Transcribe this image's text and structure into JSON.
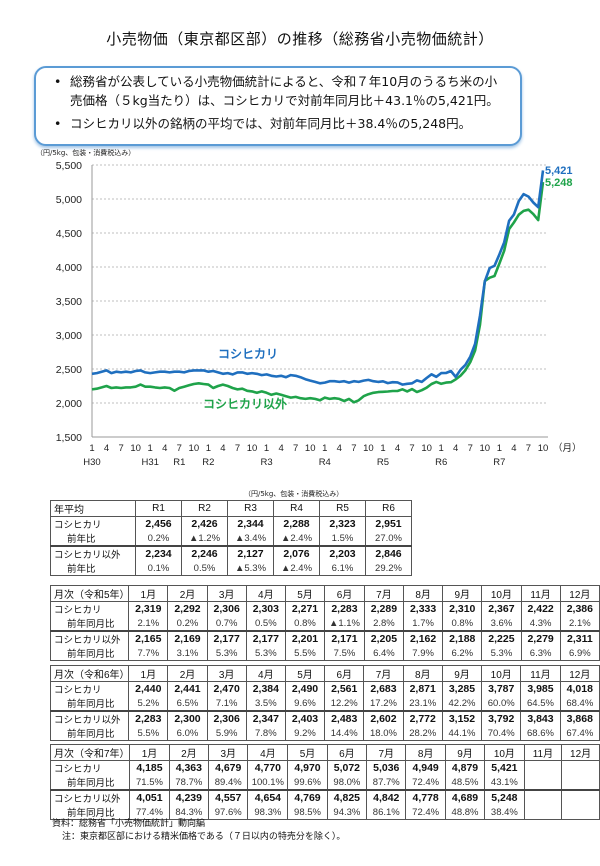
{
  "title": "小売物価（東京都区部）の推移（総務省小売物価統計）",
  "summary": {
    "items": [
      "総務省が公表している小売物価統計によると、令和７年10月のうるち米の小売価格（５kg当たり）は、コシヒカリで対前年同月比＋43.1％の5,421円。",
      "コシヒカリ以外の銘柄の平均では、対前年同月比＋38.4％の5,248円。"
    ]
  },
  "chart_data": {
    "type": "line",
    "title": "",
    "ylabel": "（円/5kg、包装・消費税込み）",
    "xlabel": "（月）",
    "ylim": [
      1500,
      5500
    ],
    "yticks": [
      "5,500",
      "5,000",
      "4,500",
      "4,000",
      "3,500",
      "3,000",
      "2,500",
      "2,000",
      "1,500"
    ],
    "grid": true,
    "x_month_ticks": [
      "1",
      "4",
      "7",
      "10",
      "1",
      "4",
      "7",
      "10",
      "1",
      "4",
      "7",
      "10",
      "1",
      "4",
      "7",
      "10",
      "1",
      "4",
      "7",
      "10",
      "1",
      "4",
      "7",
      "10",
      "1",
      "4",
      "7",
      "10",
      "1",
      "4",
      "7",
      "10"
    ],
    "era_labels": [
      {
        "label": "H30",
        "month_index": 0
      },
      {
        "label": "H31",
        "month_index": 12
      },
      {
        "label": "R1",
        "month_index": 18
      },
      {
        "label": "R2",
        "month_index": 24
      },
      {
        "label": "R3",
        "month_index": 36
      },
      {
        "label": "R4",
        "month_index": 48
      },
      {
        "label": "R5",
        "month_index": 60
      },
      {
        "label": "R6",
        "month_index": 72
      },
      {
        "label": "R7",
        "month_index": 84
      }
    ],
    "x_range": "2018-01 (H30.1) to 2025-10 (R7.10), monthly",
    "series": [
      {
        "name": "コシヒカリ",
        "color": "#1f6fbf",
        "end_label": "5,421",
        "values": [
          2430,
          2440,
          2460,
          2480,
          2440,
          2460,
          2450,
          2460,
          2450,
          2470,
          2480,
          2450,
          2440,
          2450,
          2460,
          2460,
          2450,
          2460,
          2460,
          2450,
          2470,
          2480,
          2480,
          2480,
          2460,
          2470,
          2450,
          2430,
          2440,
          2420,
          2450,
          2450,
          2430,
          2440,
          2430,
          2410,
          2420,
          2400,
          2390,
          2400,
          2380,
          2410,
          2400,
          2380,
          2350,
          2330,
          2310,
          2290,
          2300,
          2320,
          2320,
          2310,
          2320,
          2300,
          2320,
          2310,
          2330,
          2340,
          2320,
          2310,
          2319,
          2292,
          2306,
          2303,
          2271,
          2283,
          2289,
          2333,
          2310,
          2367,
          2422,
          2386,
          2440,
          2441,
          2470,
          2384,
          2490,
          2561,
          2683,
          2871,
          3285,
          3787,
          3985,
          4018,
          4185,
          4363,
          4679,
          4770,
          4970,
          5072,
          5036,
          4949,
          4879,
          5421
        ]
      },
      {
        "name": "コシヒカリ以外",
        "color": "#1fa34a",
        "end_label": "5,248",
        "values": [
          2200,
          2210,
          2230,
          2250,
          2220,
          2230,
          2220,
          2230,
          2230,
          2240,
          2270,
          2240,
          2240,
          2230,
          2220,
          2230,
          2220,
          2180,
          2220,
          2240,
          2260,
          2280,
          2290,
          2280,
          2270,
          2220,
          2250,
          2270,
          2250,
          2220,
          2200,
          2210,
          2180,
          2170,
          2150,
          2170,
          2150,
          2120,
          2140,
          2120,
          2100,
          2080,
          2090,
          2070,
          2060,
          2070,
          2060,
          2040,
          2080,
          2060,
          2070,
          2060,
          2030,
          2060,
          2010,
          2040,
          2100,
          2130,
          2150,
          2160,
          2165,
          2169,
          2177,
          2177,
          2201,
          2171,
          2205,
          2162,
          2188,
          2225,
          2279,
          2311,
          2283,
          2300,
          2306,
          2347,
          2403,
          2483,
          2602,
          2772,
          3152,
          3792,
          3843,
          3868,
          4051,
          4239,
          4557,
          4654,
          4769,
          4825,
          4842,
          4778,
          4689,
          5248
        ]
      }
    ],
    "annotations": [
      {
        "text": "コシヒカリ",
        "color": "#1f6fbf"
      },
      {
        "text": "コシヒカリ以外",
        "color": "#1fa34a"
      }
    ]
  },
  "tables": {
    "unit_note": "（円/5kg、包装・消費税込み）",
    "annual": {
      "header": [
        "年平均",
        "R1",
        "R2",
        "R3",
        "R4",
        "R5",
        "R6"
      ],
      "rows": [
        {
          "label": "コシヒカリ",
          "values": [
            "2,456",
            "2,426",
            "2,344",
            "2,288",
            "2,323",
            "2,951"
          ],
          "sub_label": "前年比",
          "sub_values": [
            "0.2%",
            "▲1.2%",
            "▲3.4%",
            "▲2.4%",
            "1.5%",
            "27.0%"
          ]
        },
        {
          "label": "コシヒカリ以外",
          "values": [
            "2,234",
            "2,246",
            "2,127",
            "2,076",
            "2,203",
            "2,846"
          ],
          "sub_label": "前年比",
          "sub_values": [
            "0.1%",
            "0.5%",
            "▲5.3%",
            "▲2.4%",
            "6.1%",
            "29.2%"
          ]
        }
      ]
    },
    "monthly": [
      {
        "header": [
          "月次（令和5年）",
          "1月",
          "2月",
          "3月",
          "4月",
          "5月",
          "6月",
          "7月",
          "8月",
          "9月",
          "10月",
          "11月",
          "12月"
        ],
        "rows": [
          {
            "label": "コシヒカリ",
            "values": [
              "2,319",
              "2,292",
              "2,306",
              "2,303",
              "2,271",
              "2,283",
              "2,289",
              "2,333",
              "2,310",
              "2,367",
              "2,422",
              "2,386"
            ],
            "sub_label": "前年同月比",
            "sub_values": [
              "2.1%",
              "0.2%",
              "0.7%",
              "0.5%",
              "0.8%",
              "▲1.1%",
              "2.8%",
              "1.7%",
              "0.8%",
              "3.6%",
              "4.3%",
              "2.1%"
            ]
          },
          {
            "label": "コシヒカリ以外",
            "values": [
              "2,165",
              "2,169",
              "2,177",
              "2,177",
              "2,201",
              "2,171",
              "2,205",
              "2,162",
              "2,188",
              "2,225",
              "2,279",
              "2,311"
            ],
            "sub_label": "前年同月比",
            "sub_values": [
              "7.7%",
              "3.1%",
              "5.3%",
              "5.3%",
              "5.5%",
              "7.5%",
              "6.4%",
              "7.9%",
              "6.2%",
              "5.3%",
              "6.3%",
              "6.9%"
            ]
          }
        ]
      },
      {
        "header": [
          "月次（令和6年）",
          "1月",
          "2月",
          "3月",
          "4月",
          "5月",
          "6月",
          "7月",
          "8月",
          "9月",
          "10月",
          "11月",
          "12月"
        ],
        "rows": [
          {
            "label": "コシヒカリ",
            "values": [
              "2,440",
              "2,441",
              "2,470",
              "2,384",
              "2,490",
              "2,561",
              "2,683",
              "2,871",
              "3,285",
              "3,787",
              "3,985",
              "4,018"
            ],
            "sub_label": "前年同月比",
            "sub_values": [
              "5.2%",
              "6.5%",
              "7.1%",
              "3.5%",
              "9.6%",
              "12.2%",
              "17.2%",
              "23.1%",
              "42.2%",
              "60.0%",
              "64.5%",
              "68.4%"
            ]
          },
          {
            "label": "コシヒカリ以外",
            "values": [
              "2,283",
              "2,300",
              "2,306",
              "2,347",
              "2,403",
              "2,483",
              "2,602",
              "2,772",
              "3,152",
              "3,792",
              "3,843",
              "3,868"
            ],
            "sub_label": "前年同月比",
            "sub_values": [
              "5.5%",
              "6.0%",
              "5.9%",
              "7.8%",
              "9.2%",
              "14.4%",
              "18.0%",
              "28.2%",
              "44.1%",
              "70.4%",
              "68.6%",
              "67.4%"
            ]
          }
        ]
      },
      {
        "header": [
          "月次（令和7年）",
          "1月",
          "2月",
          "3月",
          "4月",
          "5月",
          "6月",
          "7月",
          "8月",
          "9月",
          "10月",
          "11月",
          "12月"
        ],
        "rows": [
          {
            "label": "コシヒカリ",
            "values": [
              "4,185",
              "4,363",
              "4,679",
              "4,770",
              "4,970",
              "5,072",
              "5,036",
              "4,949",
              "4,879",
              "5,421",
              "",
              ""
            ],
            "sub_label": "前年同月比",
            "sub_values": [
              "71.5%",
              "78.7%",
              "89.4%",
              "100.1%",
              "99.6%",
              "98.0%",
              "87.7%",
              "72.4%",
              "48.5%",
              "43.1%",
              "",
              ""
            ]
          },
          {
            "label": "コシヒカリ以外",
            "values": [
              "4,051",
              "4,239",
              "4,557",
              "4,654",
              "4,769",
              "4,825",
              "4,842",
              "4,778",
              "4,689",
              "5,248",
              "",
              ""
            ],
            "sub_label": "前年同月比",
            "sub_values": [
              "77.4%",
              "84.3%",
              "97.6%",
              "98.3%",
              "98.5%",
              "94.3%",
              "86.1%",
              "72.4%",
              "48.8%",
              "38.4%",
              "",
              ""
            ]
          }
        ]
      }
    ]
  },
  "notes": {
    "source": "資料：総務省「小売物価統計」動向編",
    "note": "注：東京都区部における精米価格である（７日以内の特売分を除く）。"
  }
}
